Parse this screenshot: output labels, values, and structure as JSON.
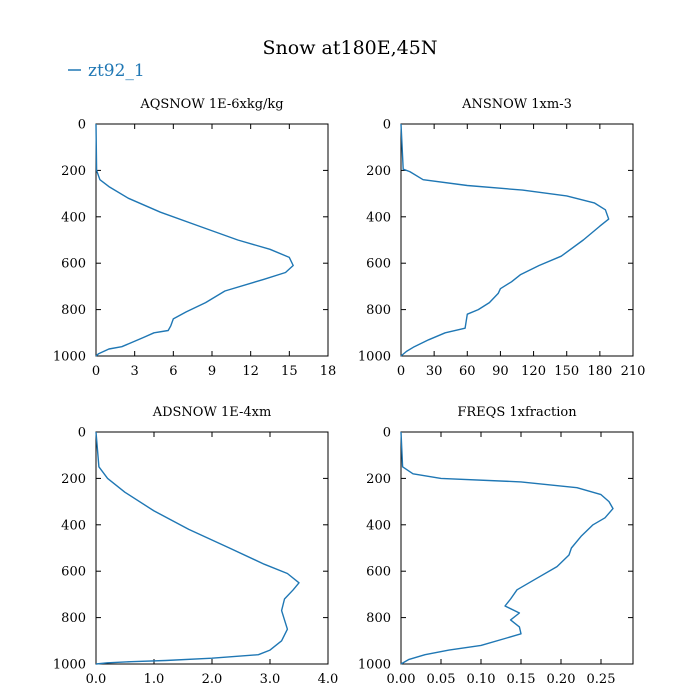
{
  "figure": {
    "title": "Snow at180E,45N",
    "legend": {
      "label": "zt92_1",
      "color": "#1f77b4",
      "placement": "top-left"
    }
  },
  "chart_data": [
    {
      "type": "line",
      "title": "AQSNOW  1E-6xkg/kg",
      "xlim": [
        0,
        18
      ],
      "ylim": [
        1000,
        0
      ],
      "xticks": [
        0,
        3,
        6,
        9,
        12,
        15,
        18
      ],
      "xtick_labels": [
        "0",
        "3",
        "6",
        "9",
        "12",
        "15",
        "18"
      ],
      "yticks": [
        0,
        200,
        400,
        600,
        800,
        1000
      ],
      "ytick_labels": [
        "0",
        "200",
        "400",
        "600",
        "800",
        "1000"
      ],
      "series": [
        {
          "name": "zt92_1",
          "color": "#1f77b4",
          "x": [
            0,
            0.05,
            0.3,
            1.0,
            2.5,
            5.0,
            8.0,
            11.0,
            13.5,
            15.0,
            15.3,
            14.7,
            13.0,
            10.0,
            8.5,
            7.0,
            6.0,
            5.8,
            5.6,
            4.5,
            3.7,
            2.0,
            1.0,
            0.2,
            0.0
          ],
          "y": [
            0,
            200,
            240,
            270,
            320,
            380,
            440,
            500,
            540,
            575,
            610,
            640,
            670,
            720,
            770,
            810,
            840,
            870,
            890,
            900,
            920,
            960,
            970,
            990,
            1000
          ]
        }
      ]
    },
    {
      "type": "line",
      "title": "ANSNOW  1xm-3",
      "xlim": [
        0,
        210
      ],
      "ylim": [
        1000,
        0
      ],
      "xticks": [
        0,
        30,
        60,
        90,
        120,
        150,
        180,
        210
      ],
      "xtick_labels": [
        "0",
        "30",
        "60",
        "90",
        "120",
        "150",
        "180",
        "210"
      ],
      "yticks": [
        0,
        200,
        400,
        600,
        800,
        1000
      ],
      "ytick_labels": [
        "0",
        "200",
        "400",
        "600",
        "800",
        "1000"
      ],
      "series": [
        {
          "name": "zt92_1",
          "color": "#1f77b4",
          "x": [
            0,
            2,
            8,
            20,
            60,
            110,
            150,
            175,
            185,
            188,
            180,
            165,
            145,
            125,
            108,
            100,
            90,
            88,
            80,
            70,
            60,
            58,
            40,
            25,
            12,
            5,
            0
          ],
          "y": [
            0,
            195,
            205,
            240,
            265,
            285,
            310,
            340,
            370,
            410,
            440,
            500,
            570,
            610,
            650,
            680,
            710,
            730,
            770,
            800,
            820,
            880,
            900,
            930,
            960,
            980,
            1000
          ]
        }
      ]
    },
    {
      "type": "line",
      "title": "ADSNOW  1E-4xm",
      "xlim": [
        0.0,
        4.0
      ],
      "ylim": [
        1000,
        0
      ],
      "xticks": [
        0.0,
        1.0,
        2.0,
        3.0,
        4.0
      ],
      "xtick_labels": [
        "0.0",
        "1.0",
        "2.0",
        "3.0",
        "4.0"
      ],
      "yticks": [
        0,
        200,
        400,
        600,
        800,
        1000
      ],
      "ytick_labels": [
        "0",
        "200",
        "400",
        "600",
        "800",
        "1000"
      ],
      "series": [
        {
          "name": "zt92_1",
          "color": "#1f77b4",
          "x": [
            0.0,
            0.05,
            0.2,
            0.5,
            1.0,
            1.6,
            2.3,
            2.9,
            3.3,
            3.5,
            3.4,
            3.25,
            3.2,
            3.25,
            3.3,
            3.2,
            3.0,
            2.8,
            2.0,
            1.2,
            0.6,
            0.2,
            0.0
          ],
          "y": [
            0,
            150,
            200,
            260,
            340,
            420,
            500,
            570,
            610,
            650,
            680,
            720,
            770,
            810,
            850,
            900,
            940,
            960,
            975,
            985,
            990,
            995,
            1000
          ]
        }
      ]
    },
    {
      "type": "line",
      "title": "FREQS  1xfraction",
      "xlim": [
        0.0,
        0.29
      ],
      "ylim": [
        1000,
        0
      ],
      "xticks": [
        0.0,
        0.05,
        0.1,
        0.15,
        0.2,
        0.25
      ],
      "xtick_labels": [
        "0.00",
        "0.05",
        "0.10",
        "0.15",
        "0.20",
        "0.25"
      ],
      "yticks": [
        0,
        200,
        400,
        600,
        800,
        1000
      ],
      "ytick_labels": [
        "0",
        "200",
        "400",
        "600",
        "800",
        "1000"
      ],
      "series": [
        {
          "name": "zt92_1",
          "color": "#1f77b4",
          "x": [
            0.0,
            0.002,
            0.015,
            0.05,
            0.15,
            0.22,
            0.25,
            0.26,
            0.265,
            0.255,
            0.24,
            0.225,
            0.213,
            0.21,
            0.195,
            0.17,
            0.145,
            0.137,
            0.13,
            0.148,
            0.137,
            0.148,
            0.15,
            0.13,
            0.1,
            0.06,
            0.03,
            0.01,
            0.0
          ],
          "y": [
            0,
            150,
            180,
            200,
            215,
            240,
            270,
            300,
            330,
            370,
            400,
            450,
            500,
            530,
            580,
            630,
            680,
            720,
            750,
            780,
            810,
            840,
            870,
            890,
            920,
            940,
            960,
            980,
            1000
          ]
        }
      ]
    }
  ]
}
